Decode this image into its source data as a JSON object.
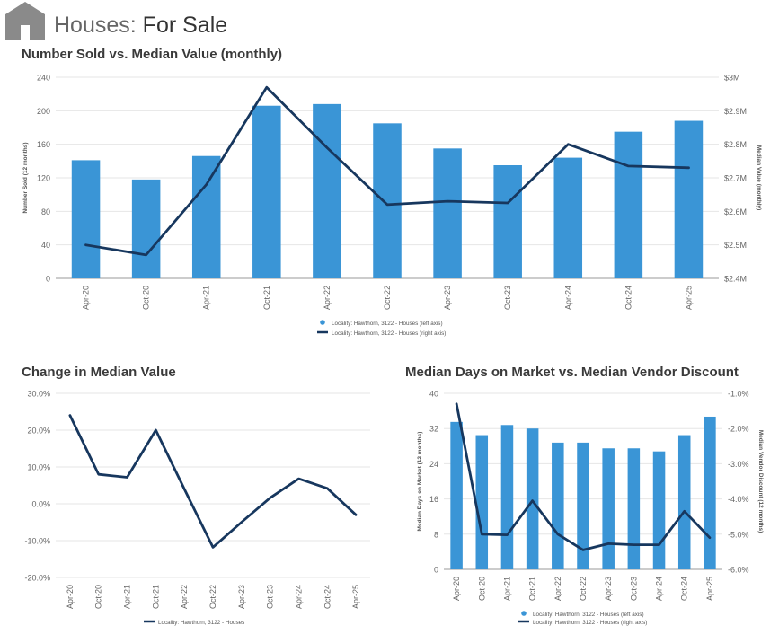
{
  "page": {
    "title_prefix": "Houses:",
    "title_main": "For Sale"
  },
  "colors": {
    "bar": "#3a95d6",
    "line": "#17375e",
    "grid": "#e6e6e6",
    "axis_text": "#666666"
  },
  "chart_data": [
    {
      "id": "sold_vs_value",
      "type": "bar",
      "title": "Number Sold vs. Median Value (monthly)",
      "categories": [
        "Apr-20",
        "Oct-20",
        "Apr-21",
        "Oct-21",
        "Apr-22",
        "Oct-22",
        "Apr-23",
        "Oct-23",
        "Apr-24",
        "Oct-24",
        "Apr-25"
      ],
      "series": [
        {
          "name": "Locality: Hawthorn, 3122 - Houses (left axis)",
          "type": "bar",
          "axis": "left",
          "values": [
            141,
            118,
            146,
            206,
            208,
            185,
            155,
            135,
            144,
            175,
            188
          ]
        },
        {
          "name": "Locality: Hawthorn, 3122 - Houses (right axis)",
          "type": "line",
          "axis": "right",
          "values": [
            2.5,
            2.47,
            2.68,
            2.97,
            2.79,
            2.62,
            2.63,
            2.625,
            2.8,
            2.735,
            2.73
          ]
        }
      ],
      "ylabel": "Number Sold (12 months)",
      "y2label": "Median Value (monthly)",
      "ylim": [
        0,
        240
      ],
      "yticks": [
        "0",
        "40",
        "80",
        "120",
        "160",
        "200",
        "240"
      ],
      "y2lim": [
        2.4,
        3.0
      ],
      "y2ticks": [
        "$2.4M",
        "$2.5M",
        "$2.6M",
        "$2.7M",
        "$2.8M",
        "$2.9M",
        "$3M"
      ]
    },
    {
      "id": "change_value",
      "type": "line",
      "title": "Change in Median Value",
      "categories": [
        "Apr-20",
        "Oct-20",
        "Apr-21",
        "Oct-21",
        "Apr-22",
        "Oct-22",
        "Apr-23",
        "Oct-23",
        "Apr-24",
        "Oct-24",
        "Apr-25"
      ],
      "series": [
        {
          "name": "Locality: Hawthorn, 3122 - Houses",
          "values": [
            24,
            8,
            7.2,
            20,
            4,
            -11.8,
            -5,
            1.6,
            6.8,
            4.2,
            -3
          ]
        }
      ],
      "ylim": [
        -20,
        30
      ],
      "yticks": [
        "-20.0%",
        "-10.0%",
        "0.0%",
        "10.0%",
        "20.0%",
        "30.0%"
      ]
    },
    {
      "id": "days_vs_discount",
      "type": "bar",
      "title": "Median Days on Market vs. Median Vendor Discount",
      "categories": [
        "Apr-20",
        "Oct-20",
        "Apr-21",
        "Oct-21",
        "Apr-22",
        "Oct-22",
        "Apr-23",
        "Oct-23",
        "Apr-24",
        "Oct-24",
        "Apr-25"
      ],
      "series": [
        {
          "name": "Locality: Hawthorn, 3122 - Houses (left axis)",
          "type": "bar",
          "axis": "left",
          "values": [
            33.5,
            30.5,
            32.8,
            32,
            28.8,
            28.8,
            27.5,
            27.5,
            26.8,
            30.5,
            34.7
          ]
        },
        {
          "name": "Locality: Hawthorn, 3122 - Houses (right axis)",
          "type": "line",
          "axis": "right",
          "values": [
            -1.3,
            -5.0,
            -5.02,
            -4.05,
            -5.0,
            -5.45,
            -5.27,
            -5.3,
            -5.3,
            -4.35,
            -5.1
          ]
        }
      ],
      "ylabel": "Median Days on Market (12 months)",
      "y2label": "Median Vendor Discount (12 months)",
      "ylim": [
        0,
        40
      ],
      "yticks": [
        "0",
        "8",
        "16",
        "24",
        "32",
        "40"
      ],
      "y2lim": [
        -6,
        -1
      ],
      "y2ticks": [
        "-6.0%",
        "-5.0%",
        "-4.0%",
        "-3.0%",
        "-2.0%",
        "-1.0%"
      ]
    }
  ]
}
